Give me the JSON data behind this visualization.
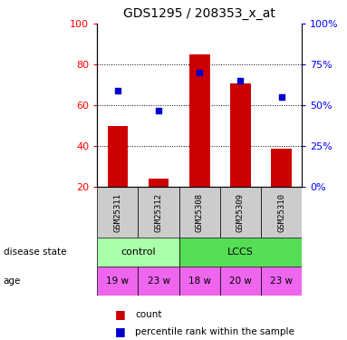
{
  "title": "GDS1295 / 208353_x_at",
  "samples": [
    "GSM25311",
    "GSM25312",
    "GSM25308",
    "GSM25309",
    "GSM25310"
  ],
  "bar_values": [
    50,
    24,
    85,
    71,
    39
  ],
  "percentile_values": [
    59,
    47,
    70,
    65,
    55
  ],
  "ylim_left": [
    20,
    100
  ],
  "ylim_right": [
    0,
    100
  ],
  "yticks_left": [
    20,
    40,
    60,
    80,
    100
  ],
  "yticks_right": [
    0,
    25,
    50,
    75,
    100
  ],
  "bar_color": "#cc0000",
  "dot_color": "#0000cc",
  "control_color": "#aaffaa",
  "lccs_color": "#55dd55",
  "age": [
    "19 w",
    "23 w",
    "18 w",
    "20 w",
    "23 w"
  ],
  "age_color": "#ee66ee",
  "sample_bg_color": "#cccccc",
  "legend_count_label": "count",
  "legend_pct_label": "percentile rank within the sample",
  "disease_label": "disease state",
  "age_label": "age",
  "figsize": [
    3.83,
    3.75
  ],
  "dpi": 100
}
